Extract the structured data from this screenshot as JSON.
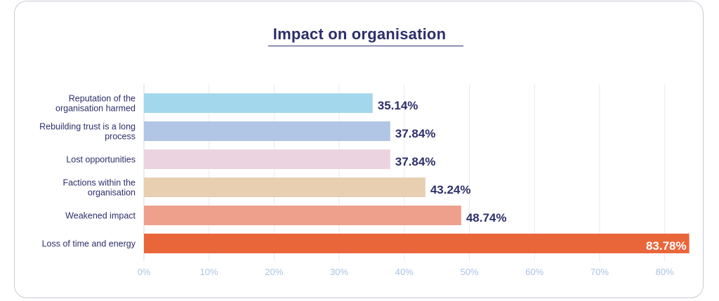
{
  "chart_data": {
    "type": "bar",
    "orientation": "horizontal",
    "title": "Impact on organisation",
    "categories": [
      [
        "Reputation of the",
        "organisation harmed"
      ],
      [
        "Rebuilding trust is a long",
        "process"
      ],
      [
        "Lost opportunities"
      ],
      [
        "Factions within the",
        "organisation"
      ],
      [
        "Weakened impact"
      ],
      [
        "Loss of time and energy"
      ]
    ],
    "values": [
      35.14,
      37.84,
      37.84,
      43.24,
      48.74,
      83.78
    ],
    "value_labels": [
      "35.14%",
      "37.84%",
      "37.84%",
      "43.24%",
      "48.74%",
      "83.78%"
    ],
    "colors": [
      "#a3d8ec",
      "#b0c6e4",
      "#ecd3e0",
      "#e8cfb2",
      "#eea08d",
      "#e9663a"
    ],
    "xticks": [
      "0%",
      "10%",
      "20%",
      "30%",
      "40%",
      "50%",
      "60%",
      "70%",
      "80%"
    ],
    "xlim": [
      0,
      83.78
    ],
    "grid": true,
    "xlabel": "",
    "ylabel": ""
  }
}
